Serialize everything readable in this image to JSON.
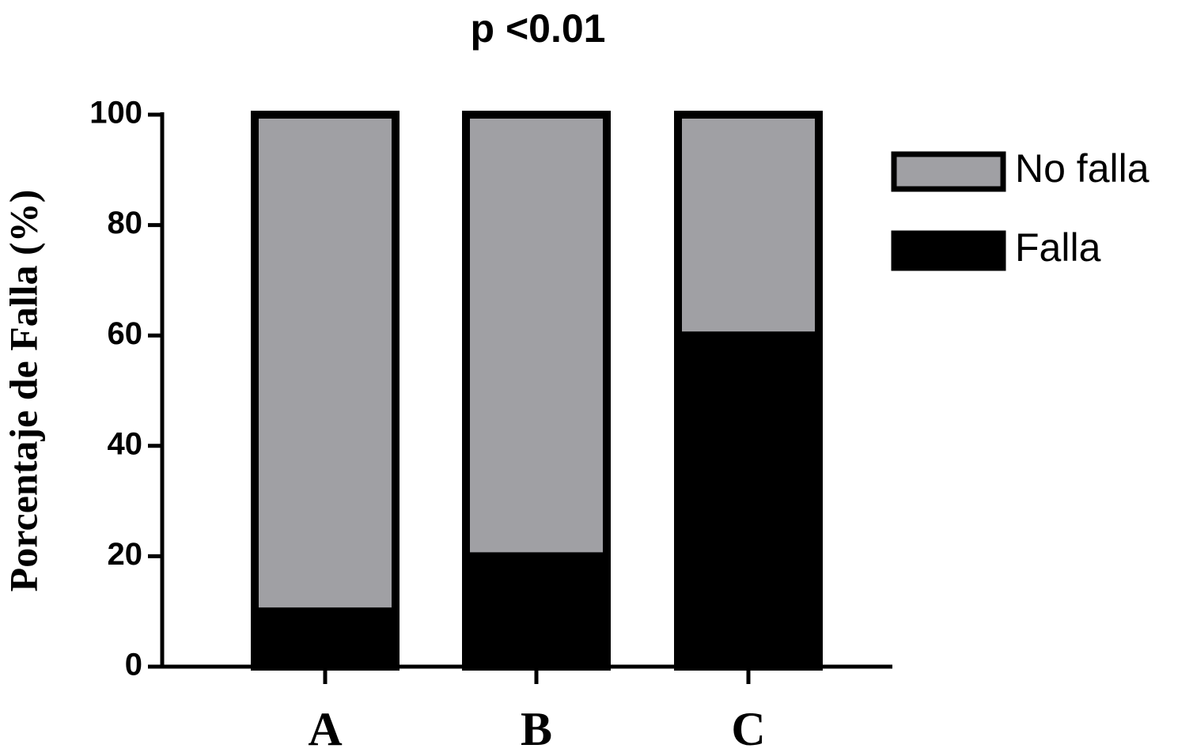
{
  "chart_data": {
    "type": "stacked_bar",
    "title": "p <0.01",
    "y_label": "Porcentaje de Falla (%)",
    "categories": [
      "A",
      "B",
      "C"
    ],
    "series": [
      {
        "name": "Falla",
        "color": "#000000",
        "values": [
          10,
          20,
          60
        ]
      },
      {
        "name": "No falla",
        "color": "#a0a0a4",
        "values": [
          90,
          80,
          40
        ]
      }
    ],
    "ylim": [
      0,
      100
    ],
    "yticks": [
      0,
      20,
      40,
      60,
      80,
      100
    ],
    "legend": "right"
  }
}
